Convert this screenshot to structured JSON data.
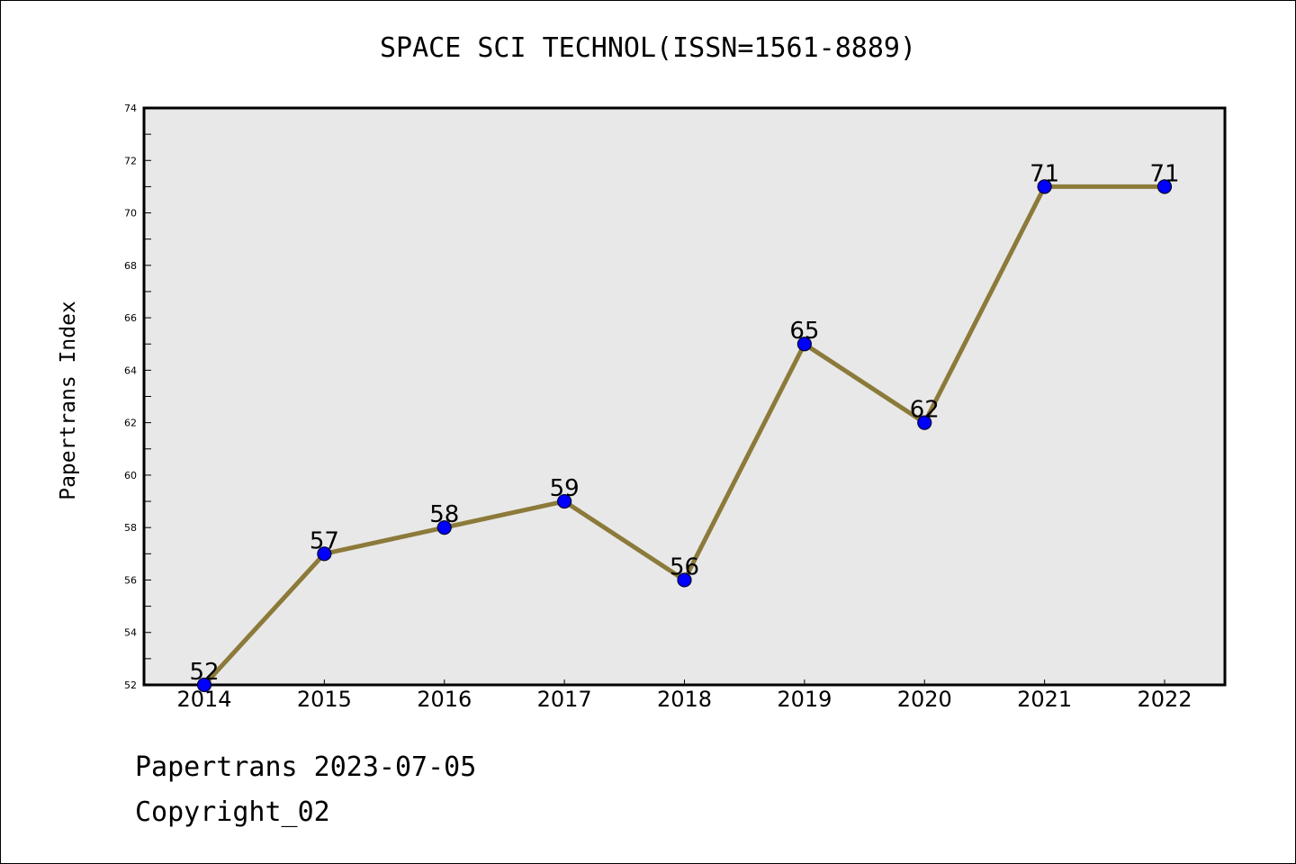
{
  "chart_data": {
    "type": "line",
    "title": "SPACE SCI TECHNOL(ISSN=1561-8889)",
    "xlabel": "",
    "ylabel": "Papertrans Index",
    "categories": [
      "2014",
      "2015",
      "2016",
      "2017",
      "2018",
      "2019",
      "2020",
      "2021",
      "2022"
    ],
    "values": [
      52,
      57,
      58,
      59,
      56,
      65,
      62,
      71,
      71
    ],
    "data_labels": [
      "52",
      "57",
      "58",
      "59",
      "56",
      "65",
      "62",
      "71",
      "71"
    ],
    "ylim": [
      52,
      74
    ],
    "y_ticks": [
      "52",
      "54",
      "56",
      "58",
      "60",
      "62",
      "64",
      "66",
      "68",
      "70",
      "72",
      "74"
    ],
    "grid": false,
    "legend": "none",
    "colors": {
      "line": "#8C7A3A",
      "marker_fill": "#0000FF",
      "marker_stroke": "#000033",
      "plot_background": "#E8E8E8"
    }
  },
  "footer": {
    "line1": "Papertrans 2023-07-05",
    "line2": "Copyright_02"
  }
}
